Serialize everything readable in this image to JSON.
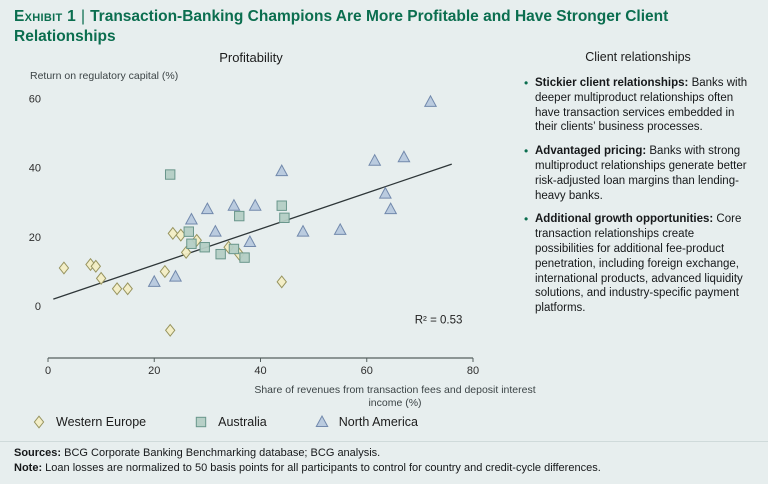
{
  "header": {
    "label": "Exhibit 1",
    "divider": "|",
    "title": "Transaction-Banking Champions Are More Profitable and Have Stronger Client Relationships"
  },
  "left_panel": {
    "title": "Profitability"
  },
  "right_panel": {
    "title": "Client relationships",
    "bullets": [
      {
        "title": "Stickier client relationships:",
        "body": " Banks with deeper multiproduct relationships often have transaction services embedded in their clients’ business processes."
      },
      {
        "title": "Advantaged pricing:",
        "body": " Banks with strong multiproduct relationships generate better risk-adjusted loan margins than lending-heavy banks."
      },
      {
        "title": "Additional growth opportunities:",
        "body": " Core transaction relationships create possibilities for additional fee-product penetration, including foreign exchange, international products, advanced liquidity solutions, and industry-specific payment platforms."
      }
    ]
  },
  "footer": {
    "sources_label": "Sources:",
    "sources_text": " BCG Corporate Banking Benchmarking database; BCG analysis.",
    "note_label": "Note:",
    "note_text": " Loan losses are normalized to 50 basis points for all participants to control for country and credit-cycle differences."
  },
  "colors": {
    "accent_green": "#0b6e4f",
    "background": "#e7eeee"
  },
  "chart_data": {
    "type": "scatter",
    "title": "Profitability",
    "xlabel": "Share of revenues from transaction fees and deposit interest income (%)",
    "ylabel": "Return on regulatory capital (%)",
    "xlim": [
      0,
      80
    ],
    "ylim": [
      -15,
      63
    ],
    "x_ticks": [
      0,
      20,
      40,
      60,
      80
    ],
    "y_ticks": [
      0,
      20,
      40,
      60
    ],
    "grid": false,
    "legend_position": "bottom",
    "r_squared_label": "R² = 0.53",
    "trendline": {
      "x1": 1,
      "y1": 2,
      "x2": 76,
      "y2": 41
    },
    "series": [
      {
        "name": "Western Europe",
        "marker": "diamond",
        "fill": "#f3edc4",
        "stroke": "#97945f",
        "points": [
          [
            3,
            11
          ],
          [
            8,
            12
          ],
          [
            9,
            11.5
          ],
          [
            10,
            8
          ],
          [
            13,
            5
          ],
          [
            15,
            5
          ],
          [
            22,
            10
          ],
          [
            23,
            -7
          ],
          [
            23.5,
            21
          ],
          [
            25,
            20.5
          ],
          [
            26,
            15.5
          ],
          [
            28,
            19
          ],
          [
            34,
            17
          ],
          [
            36,
            15
          ],
          [
            44,
            7
          ]
        ]
      },
      {
        "name": "Australia",
        "marker": "square",
        "fill": "#b4cdc4",
        "stroke": "#69968b",
        "points": [
          [
            23,
            38
          ],
          [
            26.5,
            21.5
          ],
          [
            27,
            18
          ],
          [
            29.5,
            17
          ],
          [
            32.5,
            15
          ],
          [
            35,
            16.5
          ],
          [
            36,
            26
          ],
          [
            37,
            14
          ],
          [
            44,
            29
          ],
          [
            44.5,
            25.5
          ]
        ]
      },
      {
        "name": "North America",
        "marker": "triangle",
        "fill": "#b7c8dd",
        "stroke": "#7289ac",
        "points": [
          [
            20,
            7
          ],
          [
            24,
            8.5
          ],
          [
            27,
            25
          ],
          [
            30,
            28
          ],
          [
            31.5,
            21.5
          ],
          [
            35,
            29
          ],
          [
            39,
            29
          ],
          [
            38,
            18.5
          ],
          [
            44,
            39
          ],
          [
            48,
            21.5
          ],
          [
            55,
            22
          ],
          [
            61.5,
            42
          ],
          [
            63.5,
            32.5
          ],
          [
            64.5,
            28
          ],
          [
            67,
            43
          ],
          [
            72,
            59
          ]
        ]
      }
    ]
  }
}
